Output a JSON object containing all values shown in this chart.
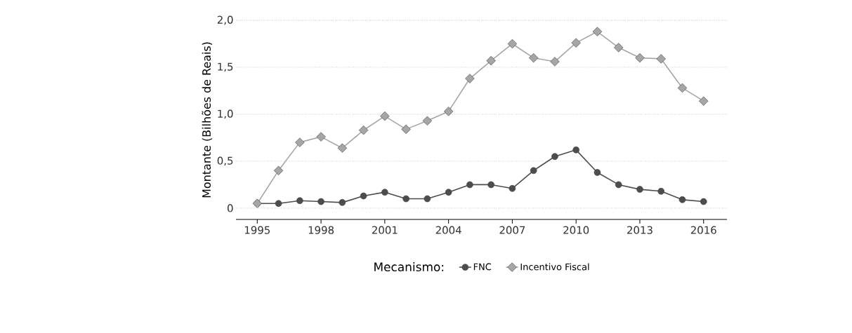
{
  "chart_data": {
    "type": "line",
    "ylabel": "Montante (Bilhões de Reais)",
    "legend_title": "Mecanismo:",
    "x": [
      1995,
      1996,
      1997,
      1998,
      1999,
      2000,
      2001,
      2002,
      2003,
      2004,
      2005,
      2006,
      2007,
      2008,
      2009,
      2010,
      2011,
      2012,
      2013,
      2014,
      2015,
      2016
    ],
    "series": [
      {
        "name": "FNC",
        "color": "#4d4d4d",
        "marker": "circle",
        "values": [
          0.05,
          0.05,
          0.08,
          0.07,
          0.06,
          0.13,
          0.17,
          0.1,
          0.1,
          0.17,
          0.25,
          0.25,
          0.21,
          0.4,
          0.55,
          0.62,
          0.38,
          0.25,
          0.2,
          0.18,
          0.09,
          0.07
        ]
      },
      {
        "name": "Incentivo Fiscal",
        "color": "#a6a6a6",
        "marker": "diamond",
        "values": [
          0.05,
          0.4,
          0.7,
          0.76,
          0.64,
          0.83,
          0.98,
          0.84,
          0.93,
          1.03,
          1.38,
          1.57,
          1.75,
          1.6,
          1.56,
          1.76,
          1.88,
          1.71,
          1.6,
          1.59,
          1.28,
          1.14
        ]
      }
    ],
    "xlim": [
      1994,
      2017.1
    ],
    "ylim": [
      -0.12,
      2.0
    ],
    "xticks": [
      1995,
      1998,
      2001,
      2004,
      2007,
      2010,
      2013,
      2016
    ],
    "yticks": [
      0,
      {
        "value": 0.5,
        "label": "0,5"
      },
      {
        "value": 1.0,
        "label": "1,0"
      },
      {
        "value": 1.5,
        "label": "1,5"
      },
      {
        "value": 2.0,
        "label": "2,0"
      }
    ],
    "grid": "y",
    "legend": "bottom",
    "line_style": "solid"
  }
}
